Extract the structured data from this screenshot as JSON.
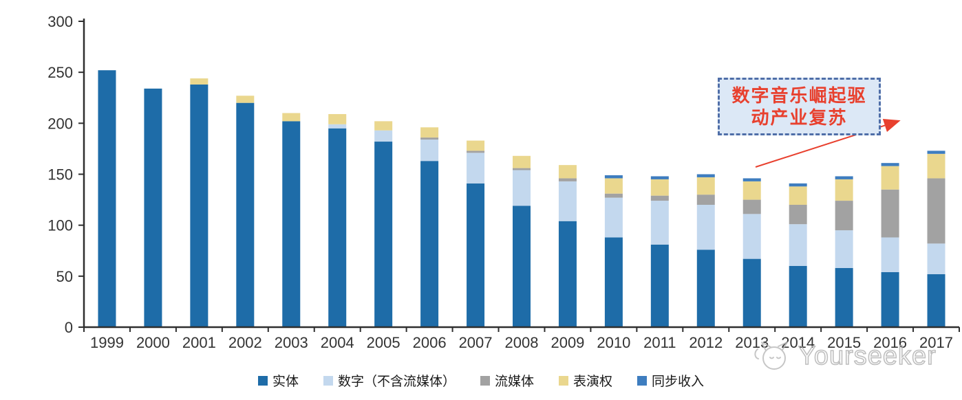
{
  "chart_data": {
    "type": "bar",
    "stacked": true,
    "title": "",
    "xlabel": "",
    "ylabel": "",
    "ylim": [
      0,
      300
    ],
    "yticks": [
      "0",
      "50",
      "100",
      "150",
      "200",
      "250",
      "300"
    ],
    "grid": false,
    "legend_position": "bottom",
    "categories": [
      "1999",
      "2000",
      "2001",
      "2002",
      "2003",
      "2004",
      "2005",
      "2006",
      "2007",
      "2008",
      "2009",
      "2010",
      "2011",
      "2012",
      "2013",
      "2014",
      "2015",
      "2016",
      "2017"
    ],
    "series": [
      {
        "key": "physical",
        "name": "实体",
        "color": "#1E6CA8",
        "values": [
          252,
          234,
          238,
          220,
          202,
          195,
          182,
          163,
          141,
          119,
          104,
          88,
          81,
          76,
          67,
          60,
          58,
          54,
          52
        ]
      },
      {
        "key": "digital-excl-streaming",
        "name": "数字（不含流媒体）",
        "color": "#C3D8EE",
        "values": [
          0,
          0,
          0,
          0,
          0,
          4,
          11,
          21,
          30,
          35,
          39,
          39,
          43,
          44,
          44,
          41,
          37,
          34,
          30
        ]
      },
      {
        "key": "streaming",
        "name": "流媒体",
        "color": "#A2A2A2",
        "values": [
          0,
          0,
          0,
          0,
          0,
          0,
          0,
          2,
          2,
          2,
          3,
          4,
          5,
          10,
          14,
          19,
          29,
          47,
          64
        ]
      },
      {
        "key": "performance-rights",
        "name": "表演权",
        "color": "#EAD78E",
        "values": [
          0,
          0,
          6,
          7,
          8,
          10,
          9,
          10,
          10,
          12,
          13,
          15,
          16,
          17,
          18,
          18,
          21,
          23,
          24
        ]
      },
      {
        "key": "sync-revenue",
        "name": "同步收入",
        "color": "#3E7DBF",
        "values": [
          0,
          0,
          0,
          0,
          0,
          0,
          0,
          0,
          0,
          0,
          0,
          3,
          3,
          3,
          3,
          3,
          3,
          3,
          3
        ]
      }
    ]
  },
  "axis": {
    "line_color": "#2e2e2e",
    "label_color": "#333333"
  },
  "annotation": {
    "line1": "数字音乐崛起驱",
    "line2": "动产业复苏",
    "text_color": "#e8402e",
    "border_color": "#4f6ea8",
    "fill_color": "#dce8f6",
    "arrow_color": "#e8402e"
  },
  "watermark": {
    "text": "Yourseeker",
    "logo_icon": "mascot-face-icon",
    "color": "#b5b5b5"
  }
}
